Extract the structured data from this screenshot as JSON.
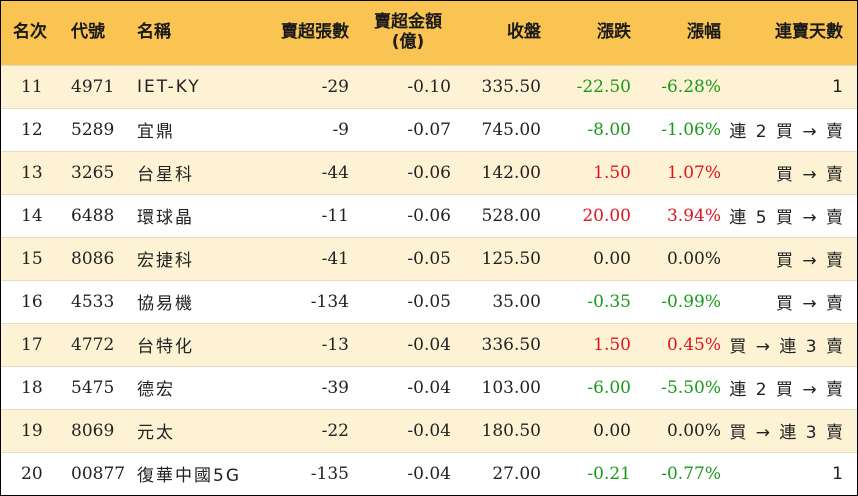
{
  "headers": {
    "rank": "名次",
    "code": "代號",
    "name": "名稱",
    "sell_lots": "賣超張數",
    "sell_amount": "賣超金額",
    "sell_amount_unit": "(億)",
    "close": "收盤",
    "change": "漲跌",
    "change_pct": "漲幅",
    "days": "連賣天數"
  },
  "rows": [
    {
      "rank": "11",
      "code": "4971",
      "name": "IET-KY",
      "lots": "-29",
      "amount": "-0.10",
      "close": "335.50",
      "change": "-22.50",
      "pct": "-6.28%",
      "days": "1",
      "dir": "neg"
    },
    {
      "rank": "12",
      "code": "5289",
      "name": "宜鼎",
      "lots": "-9",
      "amount": "-0.07",
      "close": "745.00",
      "change": "-8.00",
      "pct": "-1.06%",
      "days": "連 2 買 → 賣",
      "dir": "neg"
    },
    {
      "rank": "13",
      "code": "3265",
      "name": "台星科",
      "lots": "-44",
      "amount": "-0.06",
      "close": "142.00",
      "change": "1.50",
      "pct": "1.07%",
      "days": "買 → 賣",
      "dir": "pos"
    },
    {
      "rank": "14",
      "code": "6488",
      "name": "環球晶",
      "lots": "-11",
      "amount": "-0.06",
      "close": "528.00",
      "change": "20.00",
      "pct": "3.94%",
      "days": "連 5 買 → 賣",
      "dir": "pos"
    },
    {
      "rank": "15",
      "code": "8086",
      "name": "宏捷科",
      "lots": "-41",
      "amount": "-0.05",
      "close": "125.50",
      "change": "0.00",
      "pct": "0.00%",
      "days": "買 → 賣",
      "dir": "flat"
    },
    {
      "rank": "16",
      "code": "4533",
      "name": "協易機",
      "lots": "-134",
      "amount": "-0.05",
      "close": "35.00",
      "change": "-0.35",
      "pct": "-0.99%",
      "days": "買 → 賣",
      "dir": "neg"
    },
    {
      "rank": "17",
      "code": "4772",
      "name": "台特化",
      "lots": "-13",
      "amount": "-0.04",
      "close": "336.50",
      "change": "1.50",
      "pct": "0.45%",
      "days": "買 → 連 3 賣",
      "dir": "pos"
    },
    {
      "rank": "18",
      "code": "5475",
      "name": "德宏",
      "lots": "-39",
      "amount": "-0.04",
      "close": "103.00",
      "change": "-6.00",
      "pct": "-5.50%",
      "days": "連 2 買 → 賣",
      "dir": "neg"
    },
    {
      "rank": "19",
      "code": "8069",
      "name": "元太",
      "lots": "-22",
      "amount": "-0.04",
      "close": "180.50",
      "change": "0.00",
      "pct": "0.00%",
      "days": "買 → 連 3 賣",
      "dir": "flat"
    },
    {
      "rank": "20",
      "code": "00877",
      "name": "復華中國5G",
      "lots": "-135",
      "amount": "-0.04",
      "close": "27.00",
      "change": "-0.21",
      "pct": "-0.77%",
      "days": "1",
      "dir": "neg"
    }
  ],
  "colors": {
    "header_bg": "#f9c451",
    "row_alt_bg": "#fdf3d4",
    "up": "#e0141e",
    "down": "#1a9a1a"
  }
}
